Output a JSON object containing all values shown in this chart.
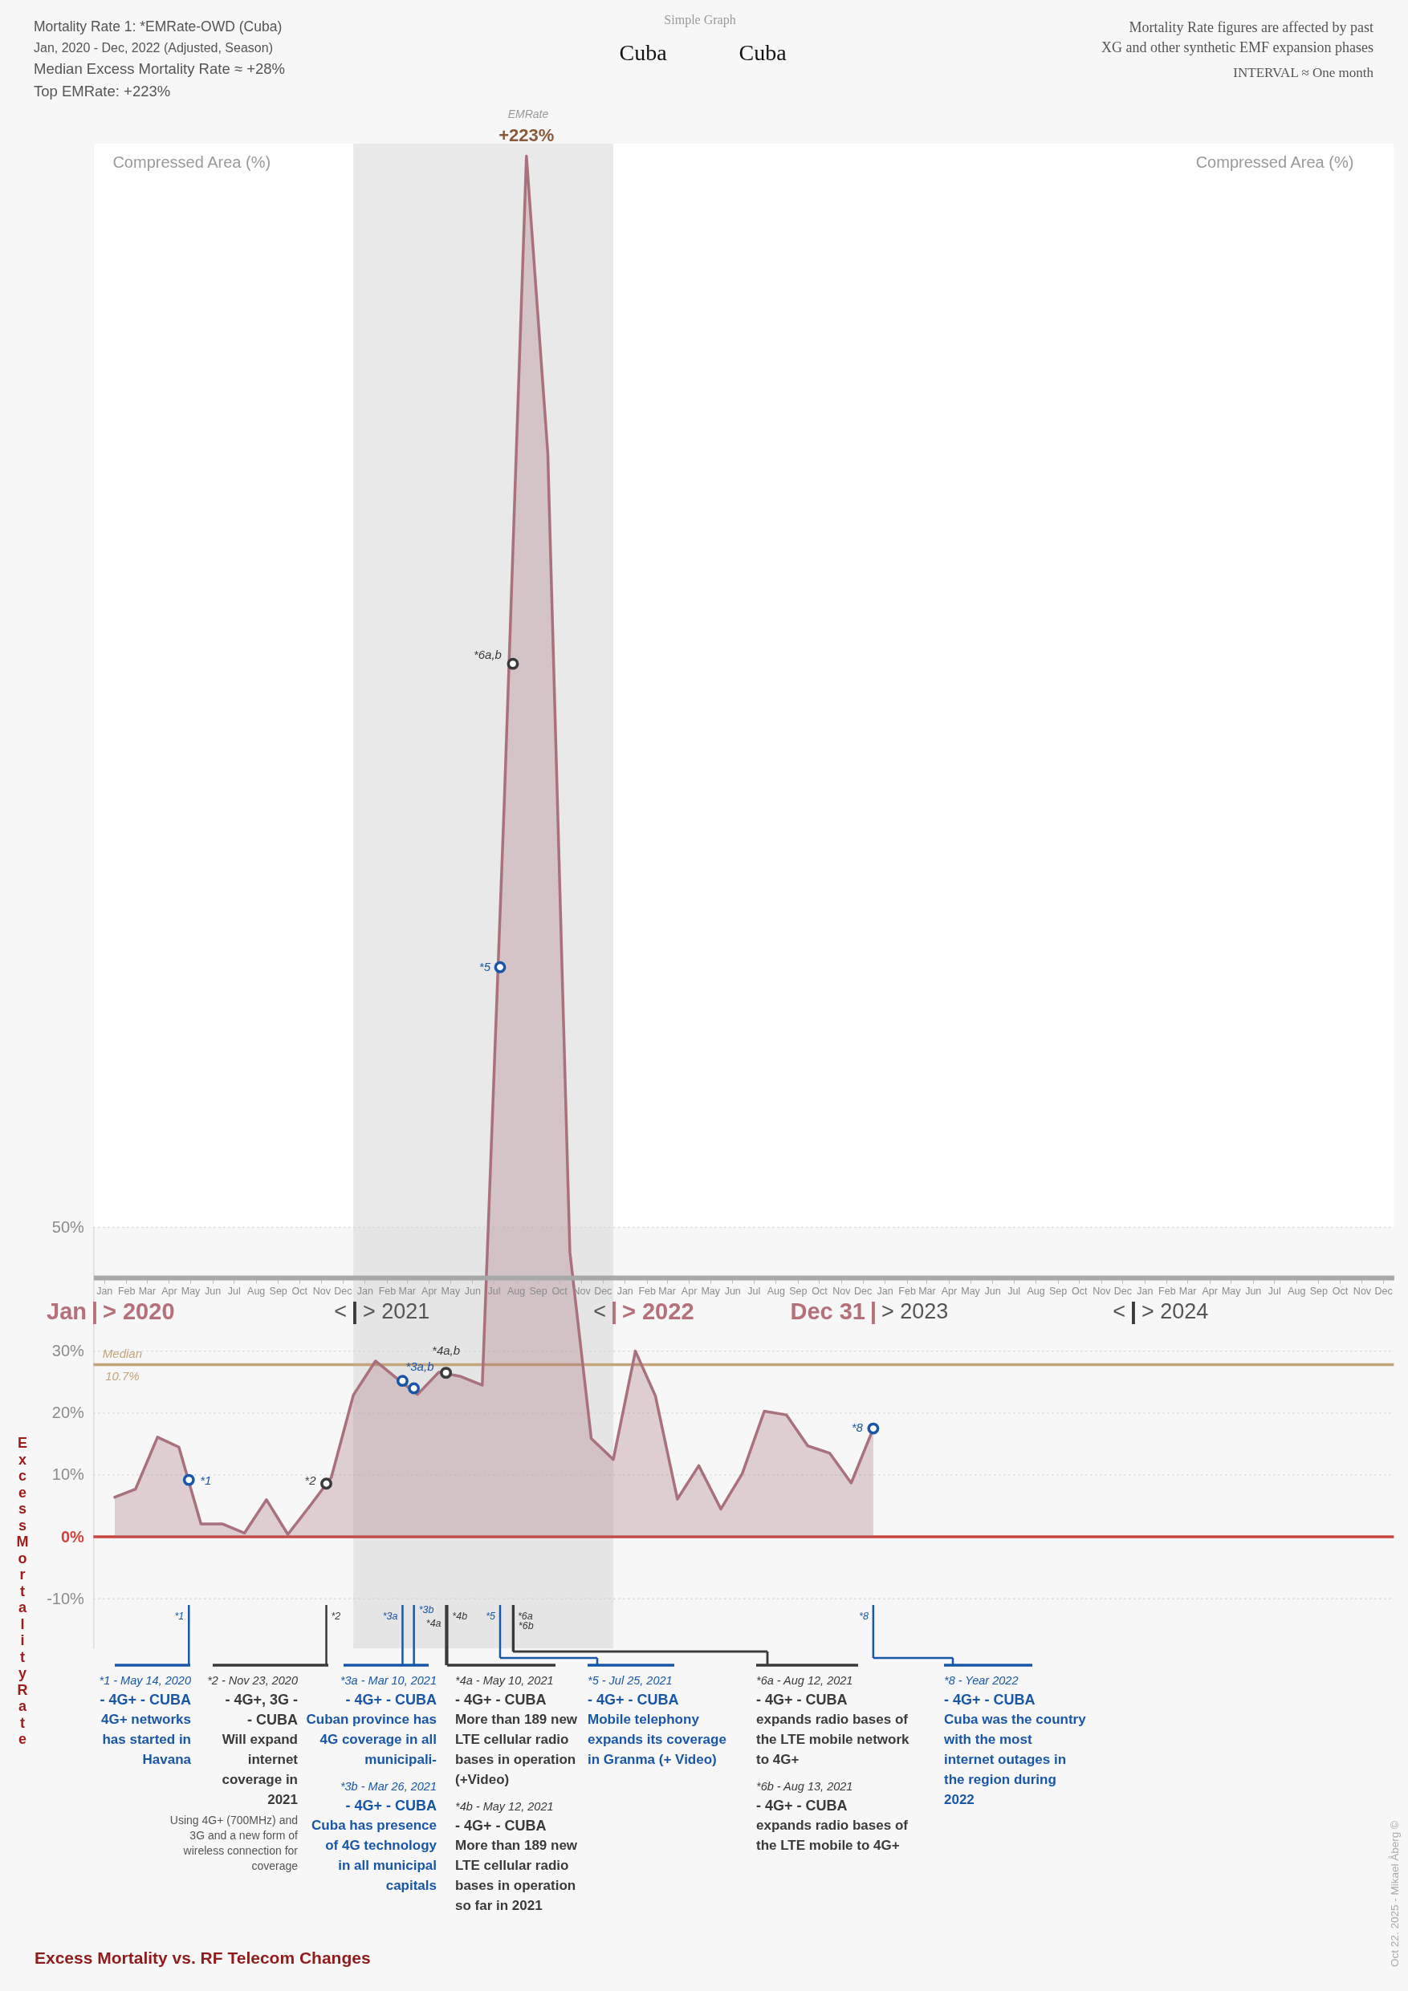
{
  "chart_data": {
    "type": "area",
    "title": "Excess Mortality vs. RF Telecom Changes",
    "ylabel": "Excess Mortality Rate",
    "x": [
      "2020-01-31",
      "2020-02-29",
      "2020-03-31",
      "2020-04-30",
      "2020-05-31",
      "2020-06-30",
      "2020-07-31",
      "2020-08-31",
      "2020-09-30",
      "2020-10-31",
      "2020-11-30",
      "2020-12-31",
      "2021-01-31",
      "2021-02-28",
      "2021-03-31",
      "2021-04-30",
      "2021-05-31",
      "2021-06-30",
      "2021-07-31",
      "2021-08-31",
      "2021-09-30",
      "2021-10-31",
      "2021-11-30",
      "2021-12-31",
      "2022-01-31",
      "2022-02-28",
      "2022-03-31",
      "2022-04-30",
      "2022-05-31",
      "2022-06-30",
      "2022-07-31",
      "2022-08-31",
      "2022-09-30",
      "2022-10-31",
      "2022-11-30",
      "2022-12-31"
    ],
    "xlim": [
      "2020-01-01",
      "2024-12-31"
    ],
    "xticks": [
      {
        "value": "2020-01-16",
        "label": "Jan"
      },
      {
        "value": "2020-02-16",
        "label": "Feb"
      },
      {
        "value": "2020-03-16",
        "label": "Mar"
      },
      {
        "value": "2020-04-16",
        "label": "Apr"
      },
      {
        "value": "2020-05-16",
        "label": "May"
      },
      {
        "value": "2020-06-16",
        "label": "Jun"
      },
      {
        "value": "2020-07-16",
        "label": "Jul"
      },
      {
        "value": "2020-08-16",
        "label": "Aug"
      },
      {
        "value": "2020-09-16",
        "label": "Sep"
      },
      {
        "value": "2020-10-16",
        "label": "Oct"
      },
      {
        "value": "2020-11-16",
        "label": "Nov"
      },
      {
        "value": "2020-12-16",
        "label": "Dec"
      },
      {
        "value": "2021-01-16",
        "label": "Jan"
      },
      {
        "value": "2021-02-16",
        "label": "Feb"
      },
      {
        "value": "2021-03-16",
        "label": "Mar"
      },
      {
        "value": "2021-04-16",
        "label": "Apr"
      },
      {
        "value": "2021-05-16",
        "label": "May"
      },
      {
        "value": "2021-06-16",
        "label": "Jun"
      },
      {
        "value": "2021-07-16",
        "label": "Jul"
      },
      {
        "value": "2021-08-16",
        "label": "Aug"
      },
      {
        "value": "2021-09-16",
        "label": "Sep"
      },
      {
        "value": "2021-10-16",
        "label": "Oct"
      },
      {
        "value": "2021-11-16",
        "label": "Nov"
      },
      {
        "value": "2021-12-16",
        "label": "Dec"
      },
      {
        "value": "2022-01-16",
        "label": "Jan"
      },
      {
        "value": "2022-02-16",
        "label": "Feb"
      },
      {
        "value": "2022-03-16",
        "label": "Mar"
      },
      {
        "value": "2022-04-16",
        "label": "Apr"
      },
      {
        "value": "2022-05-16",
        "label": "May"
      },
      {
        "value": "2022-06-16",
        "label": "Jun"
      },
      {
        "value": "2022-07-16",
        "label": "Jul"
      },
      {
        "value": "2022-08-16",
        "label": "Aug"
      },
      {
        "value": "2022-09-16",
        "label": "Sep"
      },
      {
        "value": "2022-10-16",
        "label": "Oct"
      },
      {
        "value": "2022-11-16",
        "label": "Nov"
      },
      {
        "value": "2022-12-16",
        "label": "Dec"
      },
      {
        "value": "2023-01-16",
        "label": "Jan"
      },
      {
        "value": "2023-02-16",
        "label": "Feb"
      },
      {
        "value": "2023-03-16",
        "label": "Mar"
      },
      {
        "value": "2023-04-16",
        "label": "Apr"
      },
      {
        "value": "2023-05-16",
        "label": "May"
      },
      {
        "value": "2023-06-16",
        "label": "Jun"
      },
      {
        "value": "2023-07-16",
        "label": "Jul"
      },
      {
        "value": "2023-08-16",
        "label": "Aug"
      },
      {
        "value": "2023-09-16",
        "label": "Sep"
      },
      {
        "value": "2023-10-16",
        "label": "Oct"
      },
      {
        "value": "2023-11-16",
        "label": "Nov"
      },
      {
        "value": "2023-12-16",
        "label": "Dec"
      },
      {
        "value": "2024-01-16",
        "label": "Jan"
      },
      {
        "value": "2024-02-16",
        "label": "Feb"
      },
      {
        "value": "2024-03-16",
        "label": "Mar"
      },
      {
        "value": "2024-04-16",
        "label": "Apr"
      },
      {
        "value": "2024-05-16",
        "label": "May"
      },
      {
        "value": "2024-06-16",
        "label": "Jun"
      },
      {
        "value": "2024-07-16",
        "label": "Jul"
      },
      {
        "value": "2024-08-16",
        "label": "Aug"
      },
      {
        "value": "2024-09-16",
        "label": "Sep"
      },
      {
        "value": "2024-10-16",
        "label": "Oct"
      },
      {
        "value": "2024-11-16",
        "label": "Nov"
      },
      {
        "value": "2024-12-16",
        "label": "Dec"
      }
    ],
    "ylim": [
      -18,
      225
    ],
    "yticks": [
      {
        "value": -10,
        "label": "-10%"
      },
      {
        "value": 0,
        "label": "0%"
      },
      {
        "value": 10,
        "label": "10%"
      },
      {
        "value": 20,
        "label": "20%"
      },
      {
        "value": 30,
        "label": "30%"
      },
      {
        "value": 50,
        "label": "50%"
      }
    ],
    "grid": "y",
    "series": [
      {
        "color": "#a8717c",
        "values": [
          6.4,
          7.7,
          16.1,
          14.5,
          2.1,
          2.1,
          0.6,
          6.0,
          0.4,
          5.0,
          9.6,
          22.9,
          28.4,
          25.8,
          23.0,
          26.6,
          25.9,
          24.5,
          119,
          223,
          175,
          46,
          15.9,
          12.5,
          30.0,
          22.8,
          6.1,
          11.5,
          4.5,
          10.2,
          20.3,
          19.7,
          14.7,
          13.5,
          8.7,
          17.5
        ],
        "value_labels": [
          null,
          null,
          null,
          null,
          null,
          null,
          null,
          null,
          null,
          null,
          null,
          null,
          null,
          null,
          null,
          null,
          null,
          null,
          null,
          "+223%",
          null,
          null,
          null,
          null,
          null,
          null,
          null,
          null,
          null,
          null,
          null,
          null,
          null,
          null,
          null,
          null
        ]
      },
      {
        "type": "scatter",
        "marker": "circle",
        "x": [
          "2020-05-14",
          "2020-11-23",
          "2021-03-10",
          "2021-03-26",
          "2021-05-10",
          "2021-07-25",
          "2021-08-12",
          "2022-12-31"
        ],
        "values": [
          9.2,
          8.6,
          25.2,
          24.0,
          26.5,
          92,
          141,
          17.5
        ],
        "colors": [
          "#1a56a8",
          "#3a3a3a",
          "#1a56a8",
          "#1a56a8",
          "#3a3a3a",
          "#1a56a8",
          "#3a3a3a",
          "#1a56a8"
        ]
      }
    ],
    "ref_lines": [
      {
        "axis": "y",
        "value": 0,
        "color": "#c9453d"
      },
      {
        "axis": "y",
        "value": 27.8,
        "label": "Median 10.7%",
        "color": "#c4a47a"
      },
      {
        "axis": "x",
        "value": "2020-05-14",
        "label": "*1",
        "color": "#1a56a8"
      },
      {
        "axis": "x",
        "value": "2020-11-23",
        "label": "*2",
        "color": "#3a3a3a"
      },
      {
        "axis": "x",
        "value": "2021-03-10",
        "label": "*3a",
        "color": "#1a56a8"
      },
      {
        "axis": "x",
        "value": "2021-03-26",
        "label": "*3b",
        "color": "#1a56a8"
      },
      {
        "axis": "x",
        "value": "2021-05-10",
        "label": "*4a",
        "color": "#3a3a3a"
      },
      {
        "axis": "x",
        "value": "2021-05-12",
        "label": "*4b",
        "color": "#3a3a3a"
      },
      {
        "axis": "x",
        "value": "2021-07-25",
        "label": "*5",
        "color": "#1a56a8"
      },
      {
        "axis": "x",
        "value": "2021-08-12",
        "label": "*6a",
        "color": "#3a3a3a"
      },
      {
        "axis": "x",
        "value": "2021-08-13",
        "label": "*6b",
        "color": "#3a3a3a"
      },
      {
        "axis": "x",
        "value": "2022-12-31",
        "label": "*8",
        "color": "#1a56a8"
      }
    ],
    "bands": [
      {
        "axis": "y",
        "from": 50,
        "to": 225,
        "label": "Compressed Area (%)",
        "color": "#ffffff"
      },
      {
        "axis": "x",
        "from": "2020-12-31",
        "to": "2021-12-31",
        "color": "#d4d4d4"
      }
    ],
    "annotations": [
      "Mortality Rate 1: *EMRate-OWD (Cuba)",
      "Jan, 2020 - Dec, 2022 (Adjusted, Season)",
      "Median Excess Mortality Rate ≈ +28%",
      "Top EMRate: +223%",
      "Simple Graph",
      "Cuba",
      "Cuba",
      "Mortality Rate figures are affected by past",
      "XG and other synthetic EMF expansion phases",
      "INTERVAL ≈ One month",
      "EMRate",
      "Jan | > 2020",
      "< | > 2021",
      "< | > 2022",
      "Dec 31 | > 2023",
      "< | > 2024",
      {
        "text": "*1",
        "x": "2020-05-14",
        "y": 9.2
      },
      {
        "text": "*2",
        "x": "2020-11-23",
        "y": 8.6
      },
      {
        "text": "*3a,b",
        "x": "2021-03-10",
        "y": 25.2
      },
      {
        "text": "*4a,b",
        "x": "2021-05-10",
        "y": 26.5
      },
      {
        "text": "*5",
        "x": "2021-07-25",
        "y": 92
      },
      {
        "text": "*6a,b",
        "x": "2021-08-12",
        "y": 141
      },
      {
        "text": "*8",
        "x": "2022-12-31",
        "y": 17.5
      },
      "*1 - May 14, 2020",
      "- 4G+ - CUBA",
      "4G+ networks has started in Havana",
      "*2 - Nov 23, 2020",
      "- 4G+, 3G - - CUBA",
      "Will expand internet coverage in 2021",
      "Using 4G+ (700MHz) and 3G and a new form of wireless connection for coverage",
      "*3a - Mar 10, 2021",
      "- 4G+ - CUBA",
      "Cuban province has 4G coverage in all municipali-",
      "*3b - Mar 26, 2021",
      "- 4G+ - CUBA",
      "Cuba has presence of 4G technology in all municipal capitals",
      "*4a - May 10, 2021",
      "- 4G+ - CUBA",
      "More than 189 new LTE cellular radio bases in operation (+Video)",
      "*4b - May 12, 2021",
      "- 4G+ - CUBA",
      "More than 189 new LTE cellular radio bases in operation so far in 2021",
      "*5 - Jul 25, 2021",
      "- 4G+ - CUBA",
      "Mobile telephony expands its coverage in Granma (+ Video)",
      "*6a - Aug 12, 2021",
      "- 4G+ - CUBA",
      "expands radio bases of the LTE mobile network to 4G+",
      "*6b - Aug 13, 2021",
      "- 4G+ - CUBA",
      "expands radio bases of the LTE mobile to 4G+",
      "*8 - Year 2022",
      "- 4G+ - CUBA",
      "Cuba was the country with the most internet outages in the region during 2022",
      "Oct 22. 2025 - Mikael Åberg ©"
    ]
  }
}
